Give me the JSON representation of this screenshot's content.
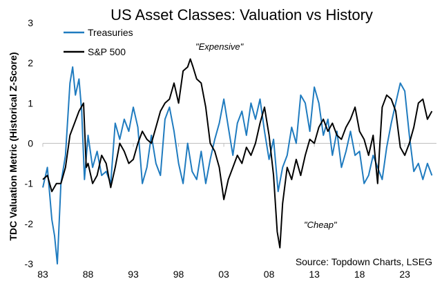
{
  "chart_data": {
    "type": "line",
    "title": "US Asset Classes: Valuation vs History",
    "xlabel": "",
    "ylabel": "TDC Valuation Metric (Historical Z-Score)",
    "xlim": [
      1983,
      2026.5
    ],
    "ylim": [
      -3,
      3
    ],
    "x_ticks": [
      1983,
      1988,
      1993,
      1998,
      2003,
      2008,
      2013,
      2018,
      2023
    ],
    "x_tick_labels": [
      "83",
      "88",
      "93",
      "98",
      "03",
      "08",
      "13",
      "18",
      "23"
    ],
    "y_ticks": [
      -3,
      -2,
      -1,
      0,
      1,
      2,
      3
    ],
    "y_tick_labels": [
      "-3",
      "-2",
      "-1",
      "0",
      "1",
      "2",
      "3"
    ],
    "grid": false,
    "legend_position": "top-left",
    "colors": {
      "treasuries": "#1f7bbf",
      "sp500": "#000000",
      "axis": "#bfbfbf"
    },
    "series": [
      {
        "name": "Treasuries",
        "color": "#1f7bbf",
        "x": [
          1983.0,
          1983.5,
          1984.0,
          1984.3,
          1984.6,
          1985.0,
          1985.5,
          1986.0,
          1986.3,
          1986.6,
          1987.0,
          1987.3,
          1987.6,
          1988.0,
          1988.5,
          1989.0,
          1989.5,
          1990.0,
          1990.5,
          1991.0,
          1991.5,
          1992.0,
          1992.5,
          1993.0,
          1993.5,
          1994.0,
          1994.5,
          1995.0,
          1995.5,
          1996.0,
          1996.5,
          1997.0,
          1997.5,
          1998.0,
          1998.5,
          1999.0,
          1999.5,
          2000.0,
          2000.5,
          2001.0,
          2001.5,
          2002.0,
          2002.5,
          2003.0,
          2003.5,
          2004.0,
          2004.5,
          2005.0,
          2005.5,
          2006.0,
          2006.5,
          2007.0,
          2007.5,
          2008.0,
          2008.5,
          2009.0,
          2009.5,
          2010.0,
          2010.5,
          2011.0,
          2011.5,
          2012.0,
          2012.5,
          2013.0,
          2013.5,
          2014.0,
          2014.5,
          2015.0,
          2015.5,
          2016.0,
          2016.5,
          2017.0,
          2017.5,
          2018.0,
          2018.5,
          2019.0,
          2019.5,
          2020.0,
          2020.5,
          2021.0,
          2021.5,
          2022.0,
          2022.5,
          2023.0,
          2023.5,
          2024.0,
          2024.5,
          2025.0,
          2025.5,
          2026.0
        ],
        "values": [
          -1.1,
          -0.6,
          -1.9,
          -2.3,
          -3.0,
          -1.0,
          -0.3,
          1.5,
          1.9,
          1.2,
          1.6,
          0.8,
          -0.9,
          0.2,
          -0.6,
          -0.2,
          -0.8,
          -0.7,
          -1.0,
          0.5,
          0.1,
          0.6,
          0.3,
          0.9,
          0.4,
          -1.0,
          -0.6,
          0.2,
          -0.5,
          -0.8,
          0.6,
          0.9,
          0.3,
          -0.5,
          -1.0,
          0.0,
          -0.7,
          -0.9,
          -0.2,
          -1.0,
          -0.4,
          0.1,
          0.5,
          1.1,
          0.4,
          -0.3,
          0.5,
          0.8,
          0.2,
          1.0,
          0.6,
          1.1,
          0.3,
          -0.4,
          0.1,
          -1.2,
          -0.6,
          -0.3,
          0.4,
          0.0,
          1.2,
          1.0,
          0.3,
          1.4,
          1.0,
          0.2,
          0.6,
          -0.3,
          0.3,
          -0.6,
          -0.2,
          0.3,
          -0.3,
          -0.2,
          -1.0,
          -0.8,
          -0.3,
          -0.6,
          -0.9,
          -0.1,
          0.5,
          1.0,
          1.5,
          1.3,
          0.2,
          -0.7,
          -0.5,
          -0.9,
          -0.5,
          -0.8
        ]
      },
      {
        "name": "S&P 500",
        "color": "#000000",
        "x": [
          1983.0,
          1983.5,
          1984.0,
          1984.5,
          1985.0,
          1985.5,
          1986.0,
          1986.5,
          1987.0,
          1987.5,
          1987.8,
          1988.0,
          1988.5,
          1989.0,
          1989.5,
          1990.0,
          1990.5,
          1991.0,
          1991.5,
          1992.0,
          1992.5,
          1993.0,
          1993.5,
          1994.0,
          1994.5,
          1995.0,
          1995.5,
          1996.0,
          1996.5,
          1997.0,
          1997.5,
          1998.0,
          1998.5,
          1999.0,
          1999.3,
          1999.6,
          2000.0,
          2000.5,
          2001.0,
          2001.5,
          2002.0,
          2002.5,
          2003.0,
          2003.5,
          2004.0,
          2004.5,
          2005.0,
          2005.5,
          2006.0,
          2006.5,
          2007.0,
          2007.5,
          2008.0,
          2008.5,
          2008.9,
          2009.2,
          2009.5,
          2010.0,
          2010.5,
          2011.0,
          2011.5,
          2012.0,
          2012.5,
          2013.0,
          2013.5,
          2014.0,
          2014.5,
          2015.0,
          2015.5,
          2016.0,
          2016.5,
          2017.0,
          2017.5,
          2018.0,
          2018.5,
          2019.0,
          2019.5,
          2020.0,
          2020.2,
          2020.5,
          2021.0,
          2021.5,
          2022.0,
          2022.5,
          2023.0,
          2023.5,
          2024.0,
          2024.5,
          2025.0,
          2025.5,
          2026.0
        ],
        "values": [
          -0.9,
          -0.8,
          -1.2,
          -1.0,
          -1.0,
          -0.6,
          0.2,
          0.5,
          0.8,
          1.0,
          -0.6,
          -0.5,
          -1.0,
          -0.8,
          -0.3,
          -0.5,
          -1.1,
          -0.6,
          0.0,
          -0.2,
          -0.5,
          -0.4,
          0.0,
          0.3,
          0.1,
          0.0,
          0.4,
          0.8,
          1.0,
          1.1,
          1.5,
          1.0,
          1.8,
          1.9,
          2.1,
          1.9,
          1.6,
          1.5,
          0.9,
          0.0,
          -0.2,
          -0.6,
          -1.4,
          -0.9,
          -0.6,
          -0.3,
          -0.5,
          -0.1,
          -0.3,
          0.0,
          0.5,
          0.9,
          0.2,
          -0.8,
          -2.2,
          -2.6,
          -1.5,
          -0.6,
          -0.9,
          -0.4,
          -0.8,
          -0.3,
          0.1,
          0.0,
          0.4,
          0.6,
          0.3,
          0.5,
          0.2,
          0.1,
          0.4,
          0.6,
          0.9,
          0.3,
          0.1,
          -0.3,
          0.2,
          -1.0,
          -0.2,
          0.9,
          1.2,
          1.1,
          0.8,
          -0.1,
          -0.3,
          0.0,
          0.4,
          1.0,
          1.1,
          0.6,
          0.8
        ]
      }
    ],
    "annotations": {
      "expensive": "\"Expensive\"",
      "cheap": "\"Cheap\"",
      "source": "Source: Topdown Charts, LSEG"
    }
  }
}
